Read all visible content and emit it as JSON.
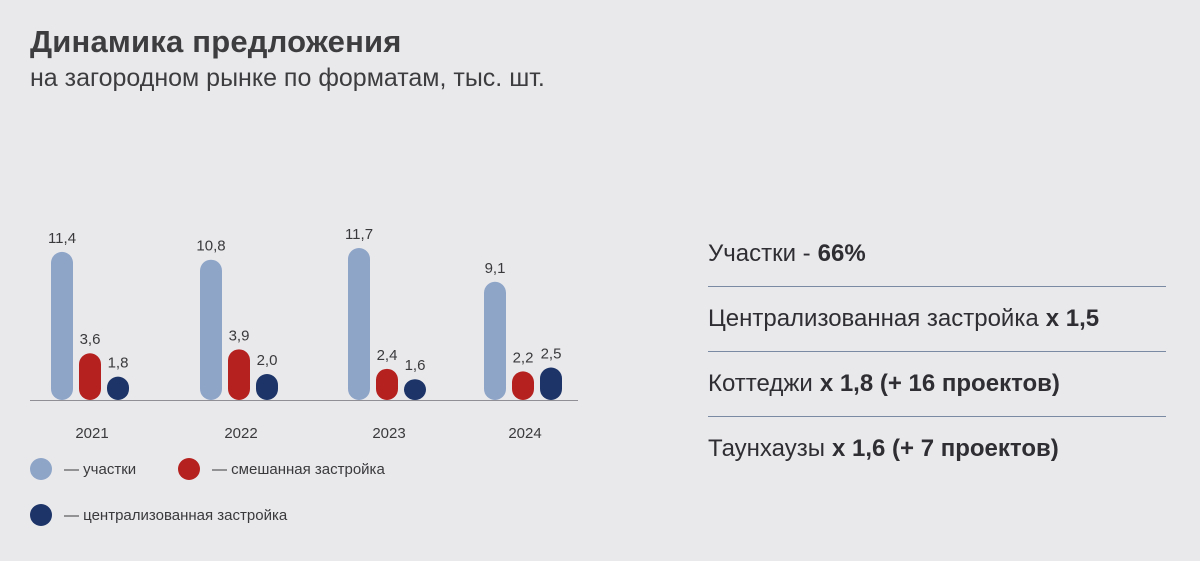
{
  "header": {
    "title": "Динамика предложения",
    "subtitle": "на загородном рынке по форматам, тыс. шт."
  },
  "chart_data": {
    "type": "bar",
    "categories": [
      "2021",
      "2022",
      "2023",
      "2024"
    ],
    "series": [
      {
        "key": "plots",
        "color": "#8ea5c8",
        "values": [
          11.4,
          10.8,
          11.7,
          9.1
        ],
        "labels": [
          "11,4",
          "10,8",
          "11,7",
          "9,1"
        ]
      },
      {
        "key": "mixed",
        "color": "#b5211e",
        "values": [
          3.6,
          3.9,
          2.4,
          2.2
        ],
        "labels": [
          "3,6",
          "3,9",
          "2,4",
          "2,2"
        ]
      },
      {
        "key": "centralized",
        "color": "#1c3468",
        "values": [
          1.8,
          2.0,
          1.6,
          2.5
        ],
        "labels": [
          "1,8",
          "2,0",
          "1,6",
          "2,5"
        ]
      }
    ],
    "ylim": [
      0,
      11.7
    ]
  },
  "legend": {
    "plots": "— участки",
    "mixed": "— смешанная застройка",
    "centralized": "— централизованная застройка"
  },
  "colors": {
    "background": "#e9e9ec",
    "plots": "#8ea5c8",
    "mixed": "#b5211e",
    "centralized": "#1c3468",
    "divider": "#7a8aa3"
  },
  "stats": [
    {
      "label": "Участки -",
      "value": "66%"
    },
    {
      "label": "Централизованная застройка",
      "value": "х 1,5"
    },
    {
      "label": "Коттеджи",
      "value": "х 1,8 (+ 16 проектов)"
    },
    {
      "label": "Таунхаузы",
      "value": "х 1,6 (+ 7 проектов)"
    }
  ]
}
